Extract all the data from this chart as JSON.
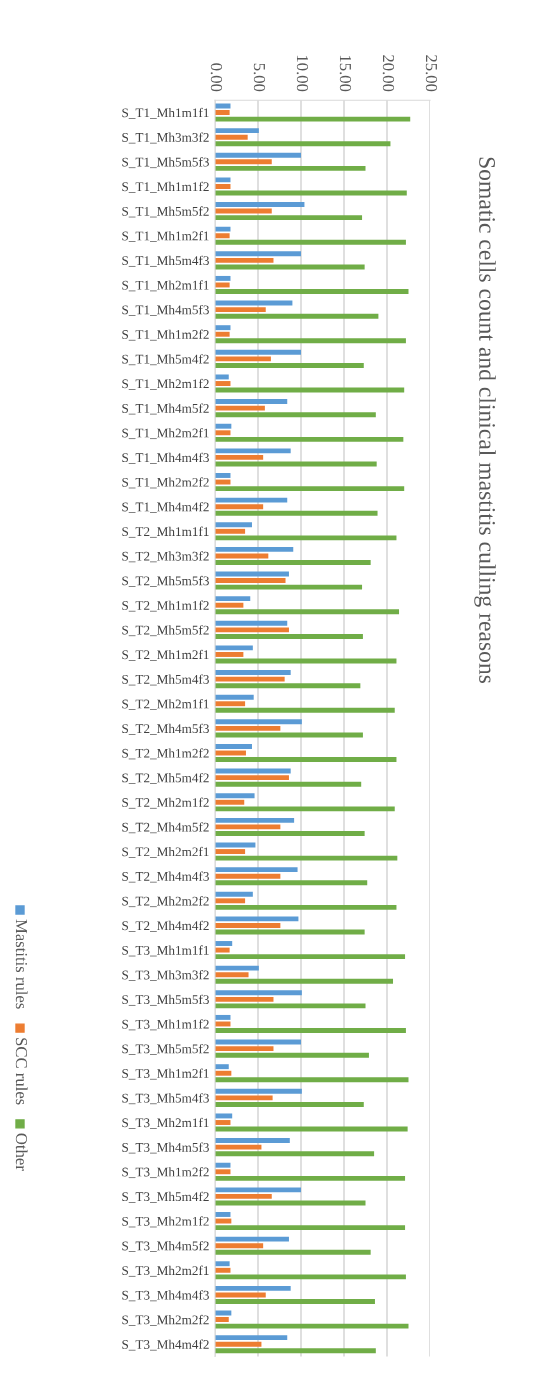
{
  "chart_data": {
    "type": "bar",
    "orientation": "horizontal",
    "title": "Somatic cells count and clinical mastitis culling reasons",
    "categories": [
      "S_T1_Mh1m1f1",
      "S_T1_Mh3m3f2",
      "S_T1_Mh5m5f3",
      "S_T1_Mh1m1f2",
      "S_T1_Mh5m5f2",
      "S_T1_Mh1m2f1",
      "S_T1_Mh5m4f3",
      "S_T1_Mh2m1f1",
      "S_T1_Mh4m5f3",
      "S_T1_Mh1m2f2",
      "S_T1_Mh5m4f2",
      "S_T1_Mh2m1f2",
      "S_T1_Mh4m5f2",
      "S_T1_Mh2m2f1",
      "S_T1_Mh4m4f3",
      "S_T1_Mh2m2f2",
      "S_T1_Mh4m4f2",
      "S_T2_Mh1m1f1",
      "S_T2_Mh3m3f2",
      "S_T2_Mh5m5f3",
      "S_T2_Mh1m1f2",
      "S_T2_Mh5m5f2",
      "S_T2_Mh1m2f1",
      "S_T2_Mh5m4f3",
      "S_T2_Mh2m1f1",
      "S_T2_Mh4m5f3",
      "S_T2_Mh1m2f2",
      "S_T2_Mh5m4f2",
      "S_T2_Mh2m1f2",
      "S_T2_Mh4m5f2",
      "S_T2_Mh2m2f1",
      "S_T2_Mh4m4f3",
      "S_T2_Mh2m2f2",
      "S_T2_Mh4m4f2",
      "S_T3_Mh1m1f1",
      "S_T3_Mh3m3f2",
      "S_T3_Mh5m5f3",
      "S_T3_Mh1m1f2",
      "S_T3_Mh5m5f2",
      "S_T3_Mh1m2f1",
      "S_T3_Mh5m4f3",
      "S_T3_Mh2m1f1",
      "S_T3_Mh4m5f3",
      "S_T3_Mh1m2f2",
      "S_T3_Mh5m4f2",
      "S_T3_Mh2m1f2",
      "S_T3_Mh4m5f2",
      "S_T3_Mh2m2f1",
      "S_T3_Mh4m4f3",
      "S_T3_Mh2m2f2",
      "S_T3_Mh4m4f2"
    ],
    "series": [
      {
        "name": "Mastitis rules",
        "color": "#5b9bd5",
        "values": [
          1.8,
          5.1,
          10.0,
          1.8,
          10.4,
          1.8,
          10.0,
          1.8,
          9.0,
          1.8,
          10.0,
          1.6,
          8.4,
          1.9,
          8.8,
          1.8,
          8.4,
          4.3,
          9.1,
          8.6,
          4.1,
          8.4,
          4.4,
          8.8,
          4.5,
          10.1,
          4.3,
          8.8,
          4.6,
          9.2,
          4.7,
          9.6,
          4.4,
          9.7,
          2.0,
          5.1,
          10.1,
          1.8,
          10.0,
          1.6,
          10.1,
          2.0,
          8.7,
          1.8,
          10.0,
          1.8,
          8.6,
          1.7,
          8.8,
          1.9,
          8.4
        ]
      },
      {
        "name": "SCC rules",
        "color": "#ed7d31",
        "values": [
          1.7,
          3.8,
          6.6,
          1.8,
          6.6,
          1.7,
          6.8,
          1.7,
          5.9,
          1.7,
          6.5,
          1.8,
          5.8,
          1.8,
          5.6,
          1.8,
          5.6,
          3.5,
          6.2,
          8.2,
          3.3,
          8.6,
          3.3,
          8.1,
          3.5,
          7.6,
          3.6,
          8.6,
          3.4,
          7.6,
          3.5,
          7.6,
          3.5,
          7.6,
          1.7,
          3.9,
          6.8,
          1.8,
          6.8,
          1.9,
          6.7,
          1.8,
          5.4,
          1.8,
          6.6,
          1.9,
          5.6,
          1.8,
          5.9,
          1.6,
          5.4
        ]
      },
      {
        "name": "Other",
        "color": "#70ad47",
        "values": [
          22.7,
          20.4,
          17.5,
          22.3,
          17.1,
          22.2,
          17.4,
          22.5,
          19.0,
          22.2,
          17.3,
          22.0,
          18.7,
          21.9,
          18.8,
          22.0,
          18.9,
          21.1,
          18.1,
          17.1,
          21.4,
          17.2,
          21.1,
          16.9,
          20.9,
          17.2,
          21.1,
          17.0,
          20.9,
          17.4,
          21.2,
          17.7,
          21.1,
          17.4,
          22.1,
          20.7,
          17.5,
          22.2,
          17.9,
          22.5,
          17.3,
          22.4,
          18.5,
          22.1,
          17.5,
          22.1,
          18.1,
          22.2,
          18.6,
          22.5,
          18.7
        ]
      }
    ],
    "xlim": [
      0,
      25
    ],
    "xticks": [
      {
        "value": 0,
        "label": "0.00"
      },
      {
        "value": 5,
        "label": "5.00"
      },
      {
        "value": 10,
        "label": "10.00"
      },
      {
        "value": 15,
        "label": "15.00"
      },
      {
        "value": 20,
        "label": "20.00"
      },
      {
        "value": 25,
        "label": "25.00"
      }
    ],
    "grid": "x",
    "legend": "left"
  }
}
